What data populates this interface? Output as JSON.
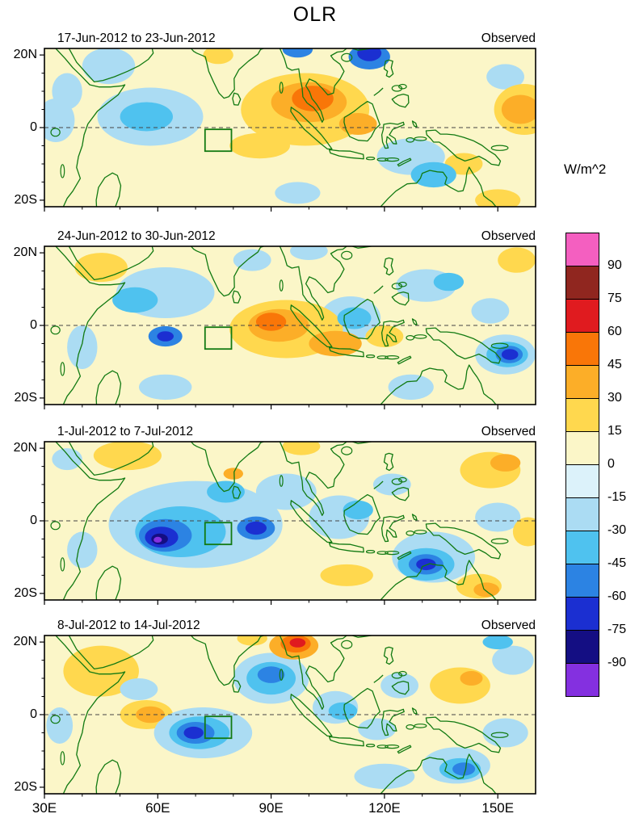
{
  "chart_data": {
    "type": "heatmap",
    "title": "OLR",
    "unit": "W/m^2",
    "x_axis": {
      "range_deg_east": [
        30,
        160
      ],
      "ticks": [
        {
          "label": "30E",
          "lon": 30
        },
        {
          "label": "60E",
          "lon": 60
        },
        {
          "label": "90E",
          "lon": 90
        },
        {
          "label": "120E",
          "lon": 120
        },
        {
          "label": "150E",
          "lon": 150
        }
      ]
    },
    "y_axis": {
      "range_deg_north": [
        -21.8,
        21.8
      ],
      "ticks": [
        {
          "label": "20N",
          "lat": 20
        },
        {
          "label": "0",
          "lat": 0
        },
        {
          "label": "20S",
          "lat": -20
        }
      ]
    },
    "colorbar": {
      "units": "W/m^2",
      "tick_values": [
        90,
        75,
        60,
        45,
        30,
        15,
        0,
        -15,
        -30,
        -45,
        -60,
        -75,
        -90
      ],
      "band_colors_low_to_high": [
        "#8430E0",
        "#140E83",
        "#1B2FD1",
        "#2C83E3",
        "#4FC2EF",
        "#ABDCF3",
        "#DCF2FA",
        "#FBF6C8",
        "#FFD84E",
        "#FCAE28",
        "#F97608",
        "#E01B1F",
        "#90261F",
        "#F45FC0"
      ]
    },
    "features_format": "[lon_deg, lat_deg, radius_lon_deg, radius_lat_deg, anomaly_wm2]",
    "panels": [
      {
        "label": "17-Jun-2012 to 23-Jun-2012",
        "observed": "Observed",
        "features": [
          [
            33,
            2,
            5,
            6,
            -20
          ],
          [
            47,
            17,
            7,
            5,
            -20
          ],
          [
            36,
            10,
            4,
            5,
            -20
          ],
          [
            58,
            3,
            14,
            8,
            -20
          ],
          [
            57,
            3,
            7,
            4,
            -35
          ],
          [
            97,
            21.5,
            4,
            2.2,
            -50
          ],
          [
            116,
            19.5,
            5.5,
            3.5,
            -50
          ],
          [
            116,
            20.5,
            3.2,
            2.2,
            -65
          ],
          [
            152,
            14,
            5,
            3.5,
            -20
          ],
          [
            127,
            -8,
            9,
            5,
            -20
          ],
          [
            133,
            -13,
            6,
            3.5,
            -30
          ],
          [
            97,
            -18,
            6,
            3,
            -20
          ],
          [
            99,
            5,
            17,
            10,
            20
          ],
          [
            100,
            7,
            10,
            5.5,
            35
          ],
          [
            101,
            8,
            5.5,
            3.5,
            50
          ],
          [
            113,
            1,
            5,
            3,
            35
          ],
          [
            87,
            -5,
            8,
            3.5,
            20
          ],
          [
            76,
            20,
            4,
            2.5,
            20
          ],
          [
            157,
            5,
            8,
            7,
            20
          ],
          [
            156,
            5,
            5,
            4,
            35
          ],
          [
            150,
            -20,
            6,
            3,
            20
          ],
          [
            141,
            -10,
            5,
            3,
            20
          ]
        ]
      },
      {
        "label": "24-Jun-2012 to 30-Jun-2012",
        "observed": "Observed",
        "features": [
          [
            62,
            9,
            13,
            7,
            -20
          ],
          [
            54,
            7,
            6,
            3.5,
            -35
          ],
          [
            62,
            -3,
            4.5,
            2.8,
            -50
          ],
          [
            62,
            -3,
            2.2,
            1.4,
            -65
          ],
          [
            85,
            18,
            5,
            3,
            -20
          ],
          [
            100,
            20.5,
            5,
            2.5,
            -20
          ],
          [
            111,
            2,
            8,
            6,
            -20
          ],
          [
            112,
            2,
            4.5,
            3,
            -35
          ],
          [
            131,
            11,
            8,
            4.5,
            -20
          ],
          [
            137,
            12,
            4,
            2.5,
            -35
          ],
          [
            148,
            4,
            5,
            3.5,
            -20
          ],
          [
            152,
            -8,
            8,
            5.5,
            -20
          ],
          [
            152.5,
            -8,
            5.5,
            3.5,
            -35
          ],
          [
            153,
            -8,
            3.6,
            2.4,
            -50
          ],
          [
            153.2,
            -8,
            2.2,
            1.5,
            -70
          ],
          [
            127,
            -17,
            6,
            3.5,
            -20
          ],
          [
            62,
            -17,
            7,
            3.5,
            -20
          ],
          [
            40,
            -6,
            4,
            6,
            -20
          ],
          [
            45,
            16,
            7,
            4,
            20
          ],
          [
            94,
            -1,
            15,
            8,
            20
          ],
          [
            92,
            0,
            8,
            4.5,
            35
          ],
          [
            90,
            1,
            4,
            2.5,
            50
          ],
          [
            107,
            -5,
            7,
            3.5,
            35
          ],
          [
            120,
            -3,
            5,
            3,
            20
          ],
          [
            155,
            18,
            5,
            3.5,
            20
          ]
        ]
      },
      {
        "label": "1-Jul-2012 to 7-Jul-2012",
        "observed": "Observed",
        "features": [
          [
            70,
            -1,
            23,
            12,
            -20
          ],
          [
            66,
            -3,
            12,
            7,
            -35
          ],
          [
            62,
            -4,
            7,
            4.5,
            -50
          ],
          [
            61,
            -4.5,
            4.4,
            2.9,
            -65
          ],
          [
            60.5,
            -5,
            2.2,
            1.5,
            -80
          ],
          [
            60,
            -5.2,
            1.1,
            0.8,
            -95
          ],
          [
            86,
            -2,
            5,
            3.2,
            -50
          ],
          [
            86,
            -2,
            2.8,
            1.8,
            -65
          ],
          [
            78,
            8,
            5,
            3,
            -35
          ],
          [
            94,
            8,
            8,
            5,
            -20
          ],
          [
            108,
            1,
            8,
            6,
            -20
          ],
          [
            113,
            3,
            4,
            2.6,
            -35
          ],
          [
            122,
            10,
            5,
            3,
            -20
          ],
          [
            133,
            -10,
            11,
            7,
            -20
          ],
          [
            131,
            -12,
            7.5,
            4.5,
            -35
          ],
          [
            131,
            -12,
            4.6,
            2.8,
            -50
          ],
          [
            131,
            -12,
            2.6,
            1.6,
            -65
          ],
          [
            150,
            1,
            6,
            4,
            -20
          ],
          [
            40,
            -8,
            4,
            5,
            -20
          ],
          [
            36,
            17,
            4,
            3,
            -20
          ],
          [
            52,
            18,
            9,
            4,
            20
          ],
          [
            80,
            13,
            2.6,
            1.6,
            35
          ],
          [
            98,
            20.5,
            5,
            2.4,
            20
          ],
          [
            148,
            14,
            8,
            5,
            20
          ],
          [
            152,
            16,
            4,
            2.4,
            35
          ],
          [
            158,
            -3,
            4,
            4,
            20
          ],
          [
            145,
            -18,
            6,
            3.4,
            20
          ],
          [
            147,
            -19,
            3.4,
            2,
            35
          ],
          [
            110,
            -15,
            7,
            3,
            20
          ]
        ]
      },
      {
        "label": "8-Jul-2012 to 14-Jul-2012",
        "observed": "Observed",
        "features": [
          [
            45,
            12,
            10,
            7,
            20
          ],
          [
            57,
            0,
            7,
            4,
            20
          ],
          [
            58,
            0,
            3.8,
            2.3,
            35
          ],
          [
            72,
            -5,
            13,
            7,
            -20
          ],
          [
            71,
            -5,
            8,
            4.5,
            -35
          ],
          [
            70,
            -5,
            5,
            3,
            -50
          ],
          [
            69.5,
            -5,
            2.6,
            1.7,
            -70
          ],
          [
            90,
            10,
            10,
            7,
            -20
          ],
          [
            90,
            10,
            6.5,
            4.5,
            -35
          ],
          [
            90,
            11,
            3.6,
            2.3,
            -50
          ],
          [
            85,
            21,
            4,
            2,
            20
          ],
          [
            96,
            19,
            6.5,
            3.8,
            35
          ],
          [
            96.5,
            19.5,
            4,
            2.4,
            50
          ],
          [
            97,
            19.8,
            2.1,
            1.3,
            65
          ],
          [
            107,
            2,
            6,
            4.5,
            -20
          ],
          [
            109,
            1,
            3.8,
            2.4,
            -35
          ],
          [
            118,
            -4,
            5,
            3,
            -20
          ],
          [
            124,
            8,
            5,
            3.5,
            -20
          ],
          [
            140,
            8,
            8,
            5,
            20
          ],
          [
            143,
            10,
            3,
            2,
            35
          ],
          [
            154,
            15,
            5.5,
            4,
            -20
          ],
          [
            150,
            20,
            4,
            2,
            -35
          ],
          [
            152,
            -5,
            6,
            4,
            -20
          ],
          [
            139,
            -14,
            9,
            5,
            -20
          ],
          [
            140,
            -15,
            5.5,
            3,
            -35
          ],
          [
            141,
            -15,
            3,
            1.8,
            -50
          ],
          [
            120,
            -17,
            8,
            3.5,
            -20
          ],
          [
            34,
            -3,
            3.5,
            5,
            -20
          ],
          [
            55,
            7,
            5,
            3,
            -20
          ]
        ]
      }
    ]
  }
}
